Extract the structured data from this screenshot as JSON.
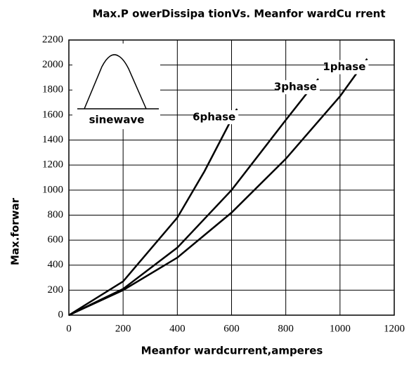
{
  "chart_data": {
    "type": "line",
    "title": "Max.P owerDissipa tionVs. Meanfor wardCu rrent",
    "x_label": "Meanfor wardcurrent,amperes",
    "y_label": "Max.forwar",
    "annotation": "sinewave",
    "xlim": [
      0,
      1200
    ],
    "xticks": [
      0,
      200,
      400,
      600,
      800,
      1000,
      1200
    ],
    "ylim": [
      0,
      2200
    ],
    "yticks": [
      0,
      200,
      400,
      600,
      800,
      1000,
      1200,
      1400,
      1600,
      1800,
      2000,
      2200
    ],
    "grid": true,
    "series": [
      {
        "name": "1phase",
        "color": "#000000",
        "x": [
          0,
          200,
          400,
          600,
          800,
          1000,
          1100
        ],
        "values": [
          0,
          200,
          460,
          820,
          1250,
          1750,
          2050
        ]
      },
      {
        "name": "3phase",
        "color": "#000000",
        "x": [
          0,
          200,
          400,
          600,
          800,
          920
        ],
        "values": [
          0,
          210,
          540,
          1000,
          1560,
          1890
        ]
      },
      {
        "name": "6phase",
        "color": "#000000",
        "x": [
          0,
          200,
          400,
          500,
          620
        ],
        "values": [
          0,
          270,
          780,
          1150,
          1650
        ]
      }
    ]
  }
}
